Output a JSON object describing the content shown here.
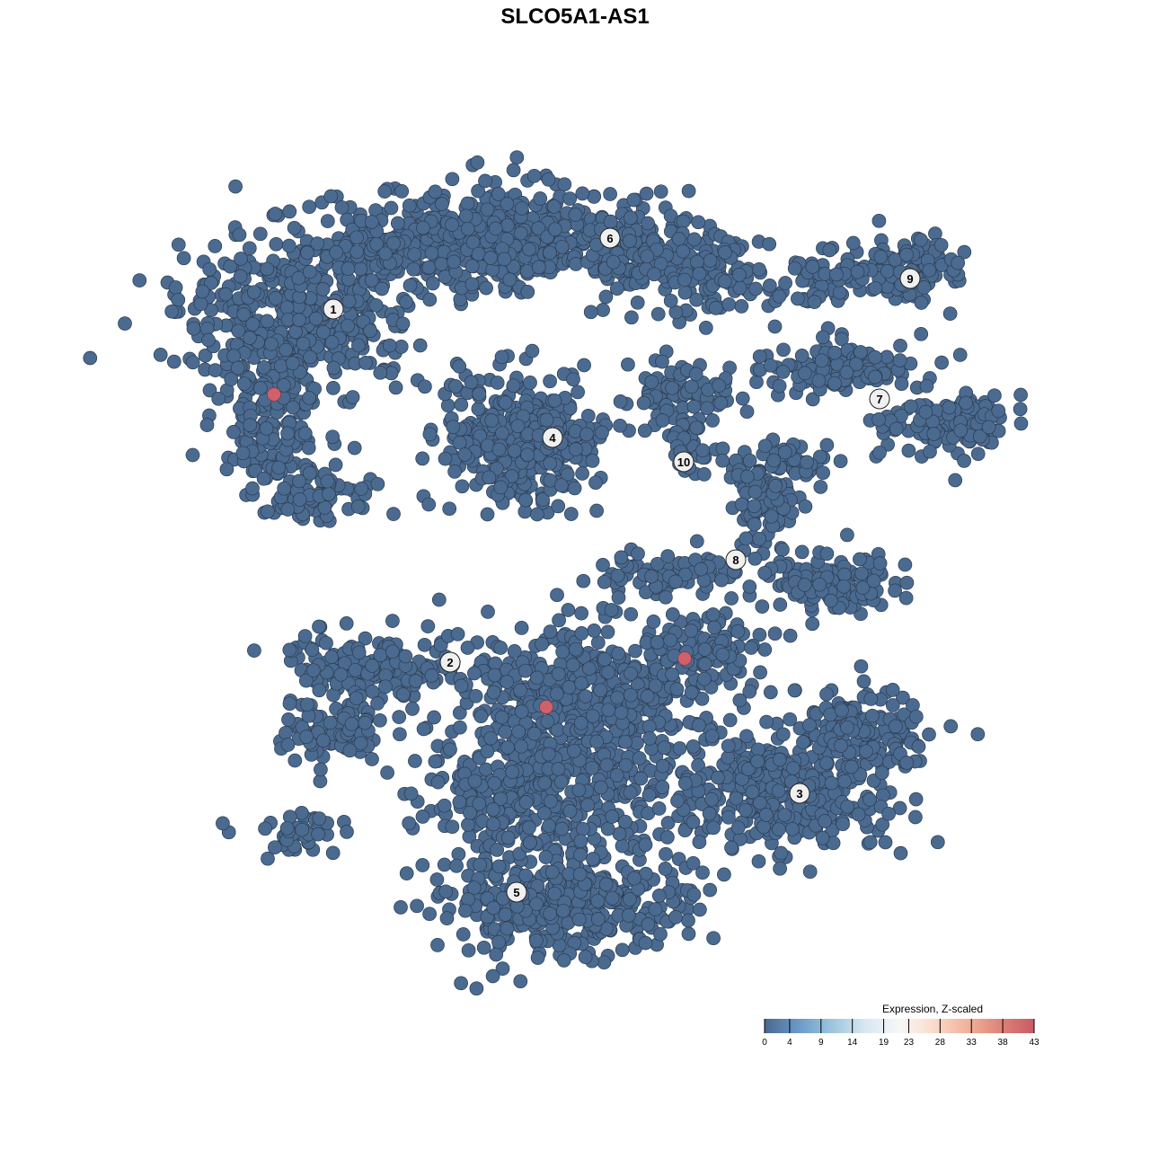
{
  "chart_data": {
    "type": "scatter",
    "title": "SLCO5A1-AS1",
    "xlabel": "",
    "ylabel": "",
    "grid": false,
    "point_color_low": "#4b6a8f",
    "point_color_high": "#d0606a",
    "cluster_labels": [
      "1",
      "2",
      "3",
      "4",
      "5",
      "6",
      "7",
      "8",
      "9",
      "10"
    ],
    "highlighted_cells": 3,
    "legend": {
      "title": "Expression, Z-scaled",
      "placement": "bottom-right",
      "ticks": [
        "0",
        "4",
        "9",
        "14",
        "19",
        "23",
        "28",
        "33",
        "38",
        "43"
      ],
      "range": [
        0,
        43
      ],
      "colors": [
        "#4a6890",
        "#6a9ac8",
        "#9cc6de",
        "#d9e8f1",
        "#f7f7f7",
        "#fbdccd",
        "#f1b39b",
        "#de8479",
        "#c85a65"
      ]
    }
  }
}
